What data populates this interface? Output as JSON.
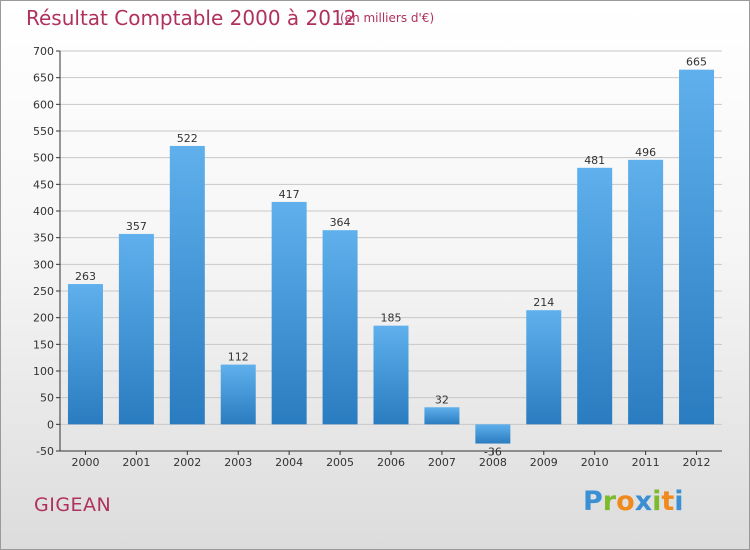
{
  "header": {
    "title": "Résultat Comptable 2000 à 2012",
    "subtitle": "(en milliers d'€)"
  },
  "footer": {
    "place": "GIGEAN",
    "logo": {
      "letters": [
        {
          "char": "P",
          "color": "#3b8fd4"
        },
        {
          "char": "r",
          "color": "#7dbb2e"
        },
        {
          "char": "o",
          "color": "#f08a1c"
        },
        {
          "char": "x",
          "color": "#3b8fd4"
        },
        {
          "char": "i",
          "color": "#7dbb2e"
        },
        {
          "char": "t",
          "color": "#f08a1c"
        },
        {
          "char": "i",
          "color": "#3b8fd4"
        }
      ]
    }
  },
  "chart_data": {
    "type": "bar",
    "categories": [
      "2000",
      "2001",
      "2002",
      "2003",
      "2004",
      "2005",
      "2006",
      "2007",
      "2008",
      "2009",
      "2010",
      "2011",
      "2012"
    ],
    "values": [
      263,
      357,
      522,
      112,
      417,
      364,
      185,
      32,
      -36,
      214,
      481,
      496,
      665
    ],
    "data_labels": [
      "263",
      "357",
      "522",
      "112",
      "417",
      "364",
      "185",
      "32",
      "-36",
      "214",
      "481",
      "496",
      "665"
    ],
    "ylim": [
      -50,
      700
    ],
    "yticks": [
      -50,
      0,
      50,
      100,
      150,
      200,
      250,
      300,
      350,
      400,
      450,
      500,
      550,
      600,
      650,
      700
    ],
    "grid": true,
    "colors": {
      "bar_light": "#5fb0ec",
      "bar_dark": "#2a7cc0",
      "grid": "#c8c8c8",
      "axis": "#333333",
      "text": "#333333"
    }
  }
}
